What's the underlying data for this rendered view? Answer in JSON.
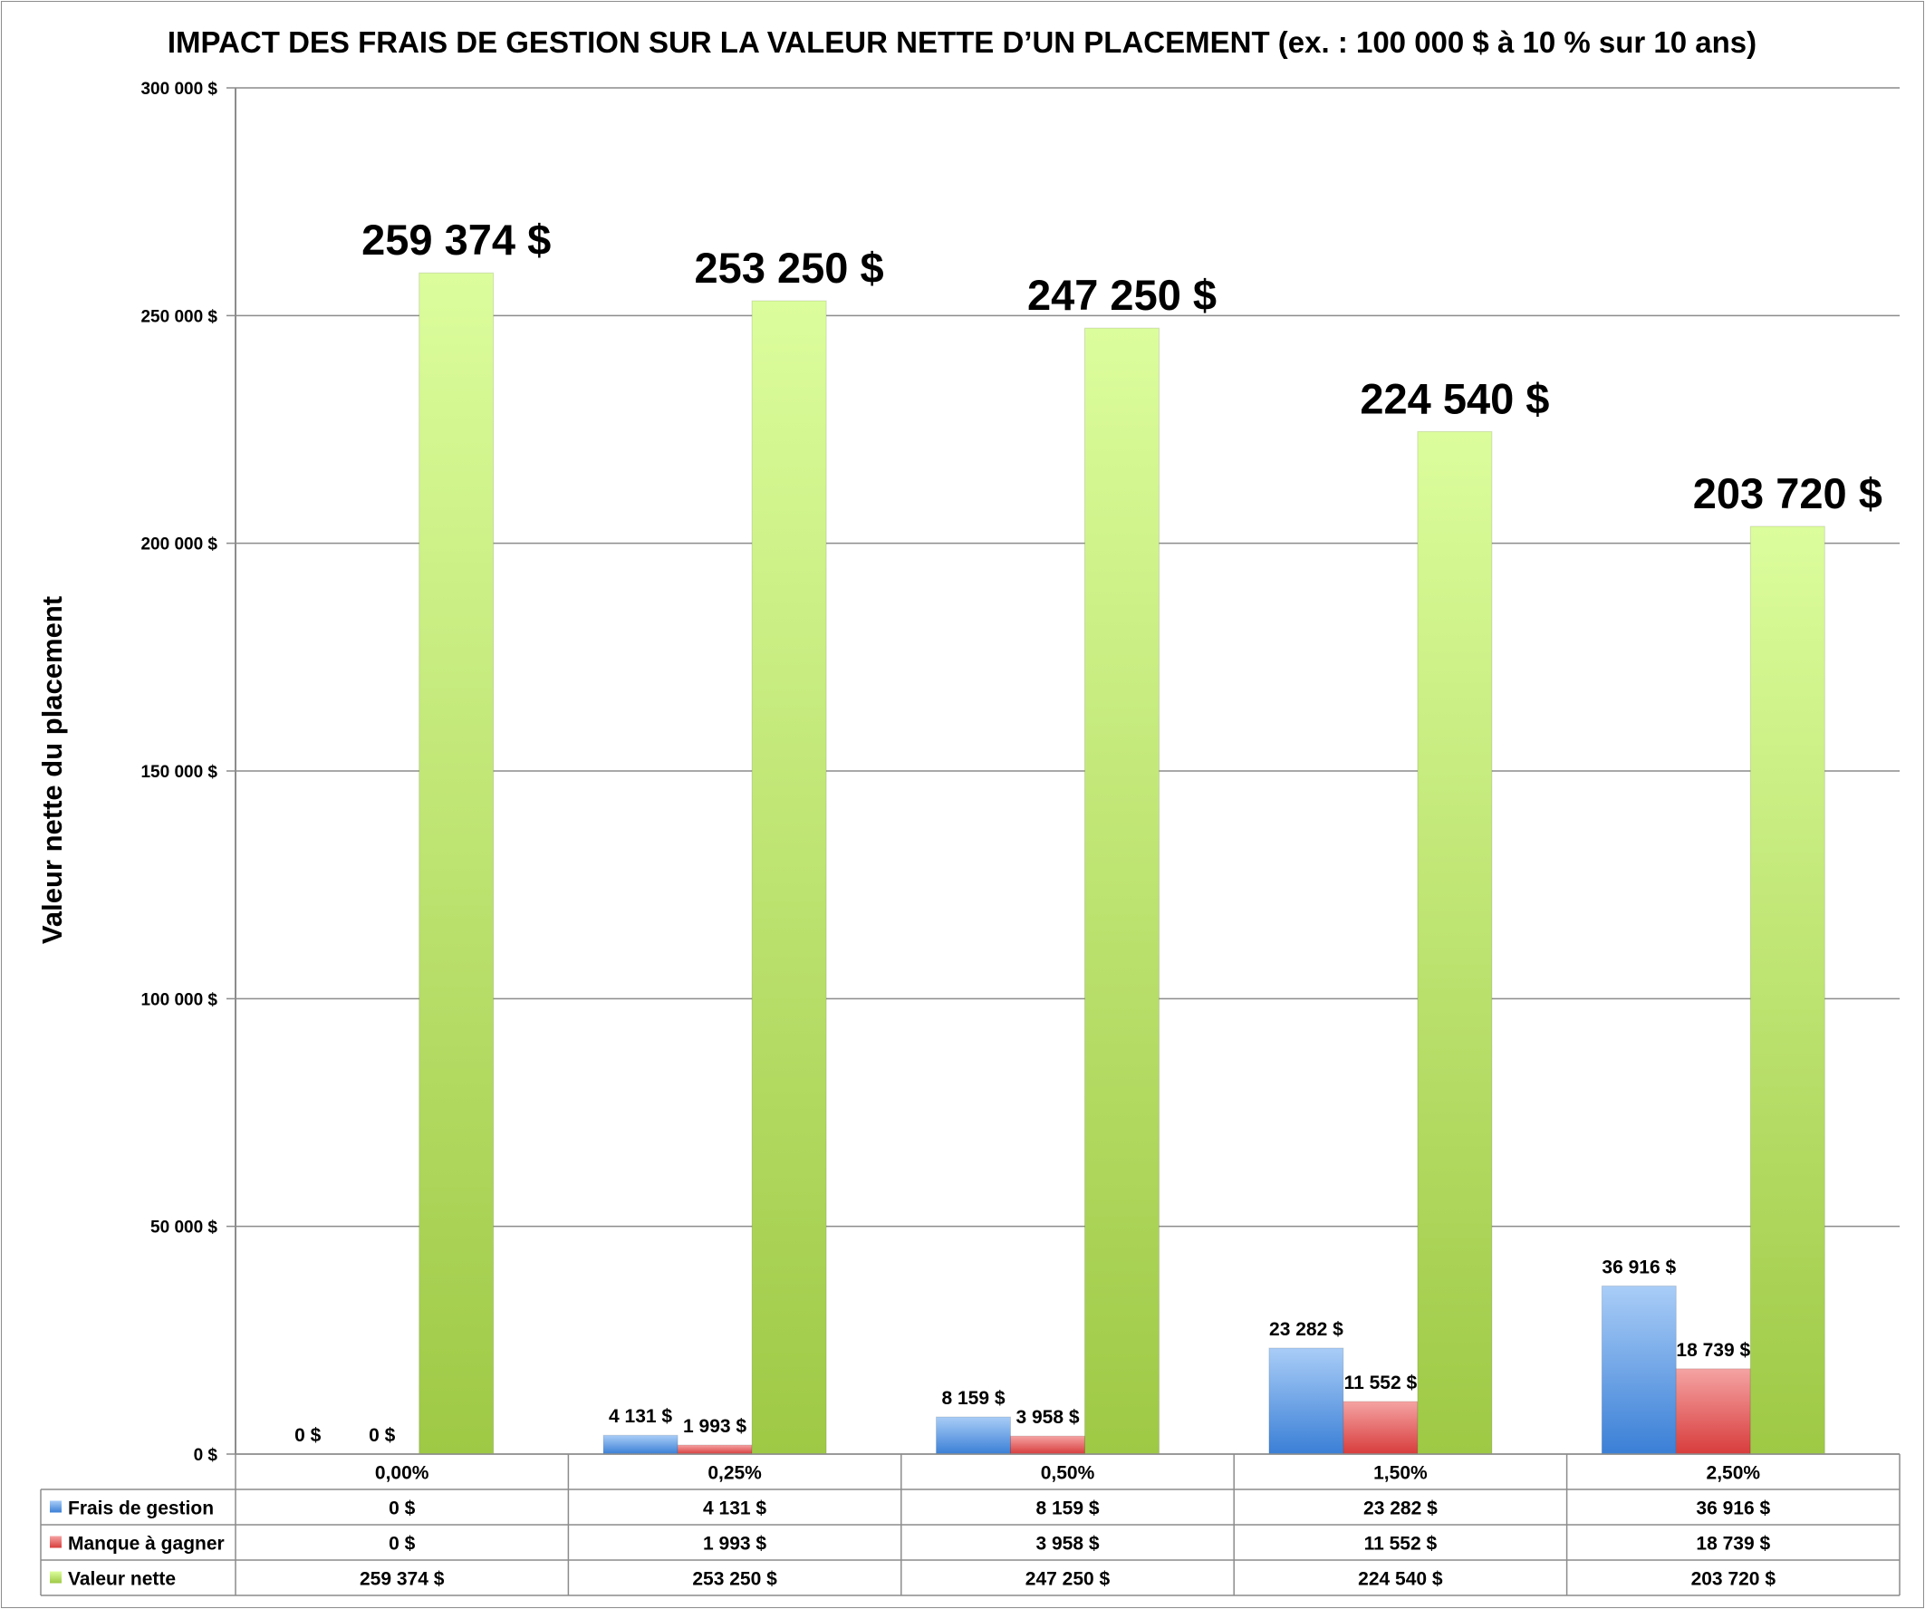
{
  "chart_data": {
    "type": "bar",
    "title": "IMPACT DES FRAIS DE GESTION SUR LA VALEUR NETTE D’UN PLACEMENT (ex. : 100 000 $ à 10 % sur 10 ans)",
    "ylabel": "Valeur nette du placement",
    "xlabel": "",
    "ylim": [
      0,
      300000
    ],
    "yticks": [
      0,
      50000,
      100000,
      150000,
      200000,
      250000,
      300000
    ],
    "ytick_labels": [
      "0 $",
      "50 000 $",
      "100 000 $",
      "150 000 $",
      "200 000 $",
      "250 000 $",
      "300 000 $"
    ],
    "categories": [
      "0,00%",
      "0,25%",
      "0,50%",
      "1,50%",
      "2,50%"
    ],
    "grid": true,
    "legend_placement": "data-table-left",
    "series": [
      {
        "name": "Frais de gestion",
        "color": "#5b9bd5",
        "values": [
          0,
          4131,
          8159,
          23282,
          36916
        ],
        "labels": [
          "0 $",
          "4 131 $",
          "8 159 $",
          "23 282 $",
          "36 916 $"
        ]
      },
      {
        "name": "Manque à gagner",
        "color": "#e05050",
        "values": [
          0,
          1993,
          3958,
          11552,
          18739
        ],
        "labels": [
          "0 $",
          "1 993 $",
          "3 958 $",
          "11 552 $",
          "18 739 $"
        ]
      },
      {
        "name": "Valeur nette",
        "color": "#a6cc4a",
        "values": [
          259374,
          253250,
          247250,
          224540,
          203720
        ],
        "labels": [
          "259 374 $",
          "253 250 $",
          "247 250 $",
          "224 540 $",
          "203 720 $"
        ]
      }
    ]
  }
}
